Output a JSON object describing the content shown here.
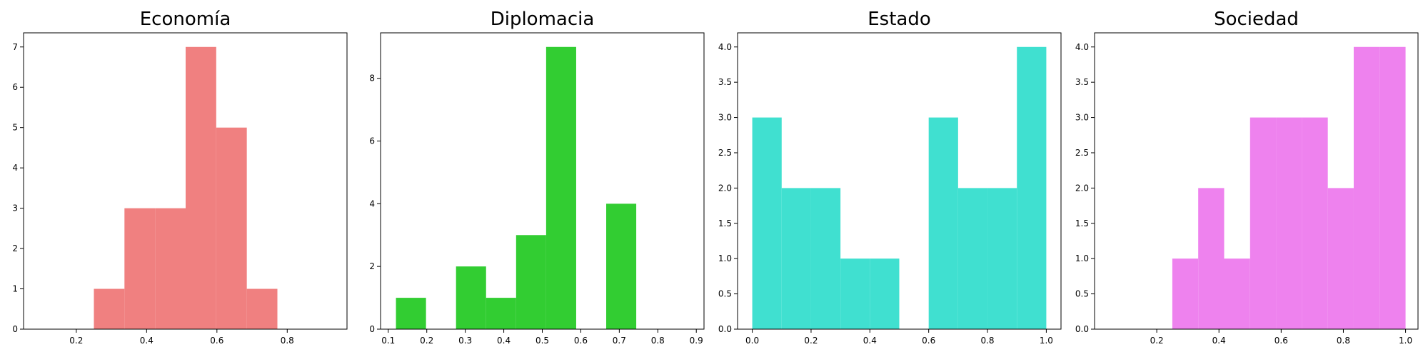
{
  "chart_data": [
    {
      "type": "histogram",
      "title": "Economía",
      "color": "#F08080",
      "xlim": [
        0.05,
        0.97
      ],
      "ylim": [
        0,
        7.35
      ],
      "xticks": [
        "0.2",
        "0.4",
        "0.6",
        "0.8"
      ],
      "yticks": [
        "0",
        "1",
        "2",
        "3",
        "4",
        "5",
        "6",
        "7"
      ],
      "bins": [
        {
          "x0": 0.25,
          "x1": 0.337,
          "value": 1
        },
        {
          "x0": 0.337,
          "x1": 0.424,
          "value": 3
        },
        {
          "x0": 0.424,
          "x1": 0.511,
          "value": 3
        },
        {
          "x0": 0.511,
          "x1": 0.598,
          "value": 7
        },
        {
          "x0": 0.598,
          "x1": 0.685,
          "value": 5
        },
        {
          "x0": 0.685,
          "x1": 0.772,
          "value": 1
        }
      ]
    },
    {
      "type": "histogram",
      "title": "Diplomacia",
      "color": "#32CD32",
      "xlim": [
        0.08,
        0.92
      ],
      "ylim": [
        0,
        9.45
      ],
      "xticks": [
        "0.1",
        "0.2",
        "0.3",
        "0.4",
        "0.5",
        "0.6",
        "0.7",
        "0.8",
        "0.9"
      ],
      "yticks": [
        "0",
        "2",
        "4",
        "6",
        "8"
      ],
      "bins": [
        {
          "x0": 0.12,
          "x1": 0.198,
          "value": 1
        },
        {
          "x0": 0.198,
          "x1": 0.276,
          "value": 0
        },
        {
          "x0": 0.276,
          "x1": 0.354,
          "value": 2
        },
        {
          "x0": 0.354,
          "x1": 0.432,
          "value": 1
        },
        {
          "x0": 0.432,
          "x1": 0.51,
          "value": 3
        },
        {
          "x0": 0.51,
          "x1": 0.588,
          "value": 9
        },
        {
          "x0": 0.588,
          "x1": 0.666,
          "value": 0
        },
        {
          "x0": 0.666,
          "x1": 0.744,
          "value": 4
        }
      ]
    },
    {
      "type": "histogram",
      "title": "Estado",
      "color": "#40E0D0",
      "xlim": [
        -0.05,
        1.05
      ],
      "ylim": [
        0,
        4.2
      ],
      "xticks": [
        "0.0",
        "0.2",
        "0.4",
        "0.6",
        "0.8",
        "1.0"
      ],
      "yticks": [
        "0.0",
        "0.5",
        "1.0",
        "1.5",
        "2.0",
        "2.5",
        "3.0",
        "3.5",
        "4.0"
      ],
      "bins": [
        {
          "x0": 0.0,
          "x1": 0.1,
          "value": 3
        },
        {
          "x0": 0.1,
          "x1": 0.2,
          "value": 2
        },
        {
          "x0": 0.2,
          "x1": 0.3,
          "value": 2
        },
        {
          "x0": 0.3,
          "x1": 0.4,
          "value": 1
        },
        {
          "x0": 0.4,
          "x1": 0.5,
          "value": 1
        },
        {
          "x0": 0.5,
          "x1": 0.6,
          "value": 0
        },
        {
          "x0": 0.6,
          "x1": 0.7,
          "value": 3
        },
        {
          "x0": 0.7,
          "x1": 0.8,
          "value": 2
        },
        {
          "x0": 0.8,
          "x1": 0.9,
          "value": 2
        },
        {
          "x0": 0.9,
          "x1": 1.0,
          "value": 4
        }
      ]
    },
    {
      "type": "histogram",
      "title": "Sociedad",
      "color": "#EE82EE",
      "xlim": [
        0.0,
        1.04
      ],
      "ylim": [
        0,
        4.2
      ],
      "xticks": [
        "0.2",
        "0.4",
        "0.6",
        "0.8",
        "1.0"
      ],
      "yticks": [
        "0.0",
        "0.5",
        "1.0",
        "1.5",
        "2.0",
        "2.5",
        "3.0",
        "3.5",
        "4.0"
      ],
      "bins": [
        {
          "x0": 0.25,
          "x1": 0.3333,
          "value": 1
        },
        {
          "x0": 0.3333,
          "x1": 0.4167,
          "value": 2
        },
        {
          "x0": 0.4167,
          "x1": 0.5,
          "value": 1
        },
        {
          "x0": 0.5,
          "x1": 0.5833,
          "value": 3
        },
        {
          "x0": 0.5833,
          "x1": 0.6667,
          "value": 3
        },
        {
          "x0": 0.6667,
          "x1": 0.75,
          "value": 3
        },
        {
          "x0": 0.75,
          "x1": 0.8333,
          "value": 2
        },
        {
          "x0": 0.8333,
          "x1": 0.9167,
          "value": 4
        },
        {
          "x0": 0.9167,
          "x1": 1.0,
          "value": 4
        }
      ]
    }
  ]
}
